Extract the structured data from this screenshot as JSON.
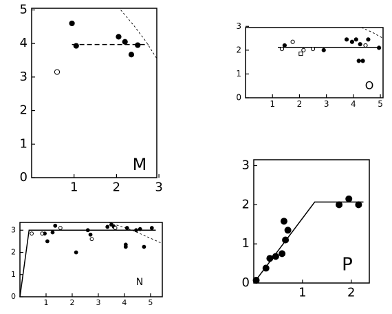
{
  "chart_data": [
    {
      "type": "scatter",
      "label": "M",
      "xlim": [
        0,
        2.95
      ],
      "ylim": [
        0,
        5.05
      ],
      "xticks": [
        1,
        2,
        3
      ],
      "yticks": [
        0,
        1,
        2,
        3,
        4,
        5
      ],
      "series": [
        {
          "marker": "filled",
          "color": "#000",
          "x": [
            0.95,
            1.05,
            2.05,
            2.2,
            2.35,
            2.5
          ],
          "y": [
            4.6,
            3.93,
            4.2,
            4.05,
            3.67,
            3.95
          ]
        },
        {
          "marker": "open",
          "color": "#000",
          "x": [
            0.6
          ],
          "y": [
            3.15
          ]
        }
      ],
      "lines": [
        {
          "style": "dashed",
          "color": "#000",
          "x": [
            0.95,
            2.75
          ],
          "y": [
            3.97,
            3.97
          ]
        },
        {
          "style": "thin-dashed",
          "color": "#000",
          "x": [
            2.1,
            2.4,
            2.7,
            2.95
          ],
          "y": [
            5.0,
            4.55,
            4.05,
            3.55
          ]
        }
      ]
    },
    {
      "type": "scatter",
      "label": "O",
      "xlim": [
        0,
        5.1
      ],
      "ylim": [
        0,
        2.95
      ],
      "xticks": [
        1,
        2,
        3,
        4,
        5
      ],
      "yticks": [
        0,
        1,
        2,
        3
      ],
      "series": [
        {
          "marker": "filled",
          "color": "#000",
          "x": [
            1.45,
            2.9,
            3.75,
            3.95,
            4.1,
            4.25,
            4.2,
            4.35,
            4.55,
            4.95
          ],
          "y": [
            2.2,
            2.0,
            2.45,
            2.35,
            2.45,
            2.25,
            1.55,
            1.55,
            2.45,
            2.1
          ]
        },
        {
          "marker": "open",
          "color": "#000",
          "x": [
            1.35,
            1.75,
            2.15,
            2.5,
            4.45
          ],
          "y": [
            2.05,
            2.35,
            2.0,
            2.05,
            2.2
          ]
        },
        {
          "marker": "square",
          "color": "#000",
          "x": [
            2.05
          ],
          "y": [
            1.85
          ]
        }
      ],
      "lines": [
        {
          "style": "solid",
          "color": "#000",
          "x": [
            1.2,
            5.0
          ],
          "y": [
            2.12,
            2.12
          ]
        },
        {
          "style": "thin-dashed",
          "color": "#000",
          "x": [
            4.3,
            4.7,
            5.1
          ],
          "y": [
            2.95,
            2.75,
            2.5
          ]
        }
      ]
    },
    {
      "type": "scatter",
      "label": "N",
      "xlim": [
        0,
        5.45
      ],
      "ylim": [
        0,
        3.35
      ],
      "xticks": [
        1,
        2,
        3,
        4,
        5
      ],
      "yticks": [
        0,
        1,
        2,
        3
      ],
      "series": [
        {
          "marker": "filled",
          "color": "#000",
          "x": [
            0.95,
            1.05,
            1.25,
            1.35,
            2.15,
            2.6,
            2.7,
            3.35,
            3.5,
            3.6,
            4.05,
            4.05,
            4.1,
            4.45,
            4.6,
            4.75,
            5.05
          ],
          "y": [
            2.85,
            2.5,
            2.9,
            3.2,
            2.0,
            3.0,
            2.8,
            3.15,
            3.25,
            3.15,
            2.35,
            2.25,
            3.1,
            3.0,
            3.05,
            2.25,
            3.1
          ]
        },
        {
          "marker": "open",
          "color": "#000",
          "x": [
            0.45,
            0.85,
            1.55,
            2.75,
            3.65
          ],
          "y": [
            2.85,
            2.85,
            3.1,
            2.6,
            3.1
          ]
        }
      ],
      "lines": [
        {
          "style": "solid",
          "color": "#000",
          "x": [
            0,
            0.35,
            5.2
          ],
          "y": [
            0,
            3.0,
            3.0
          ]
        },
        {
          "style": "thin-dashed",
          "color": "#000",
          "x": [
            3.4,
            4.3,
            5.45
          ],
          "y": [
            3.35,
            3.0,
            2.4
          ]
        }
      ]
    },
    {
      "type": "scatter",
      "label": "P",
      "xlim": [
        0,
        2.37
      ],
      "ylim": [
        0,
        3.15
      ],
      "xticks": [
        1,
        2
      ],
      "yticks": [
        0,
        1,
        2,
        3
      ],
      "series": [
        {
          "marker": "filled",
          "color": "#000",
          "x": [
            0.05,
            0.25,
            0.33,
            0.45,
            0.58,
            0.65,
            0.62,
            0.7,
            1.75,
            1.95,
            2.15
          ],
          "y": [
            0.07,
            0.38,
            0.63,
            0.68,
            0.75,
            1.1,
            1.58,
            1.35,
            2.0,
            2.15,
            2.0
          ]
        }
      ],
      "lines": [
        {
          "style": "solid",
          "color": "#000",
          "x": [
            0,
            1.25,
            2.25
          ],
          "y": [
            0,
            2.07,
            2.07
          ]
        }
      ]
    }
  ]
}
